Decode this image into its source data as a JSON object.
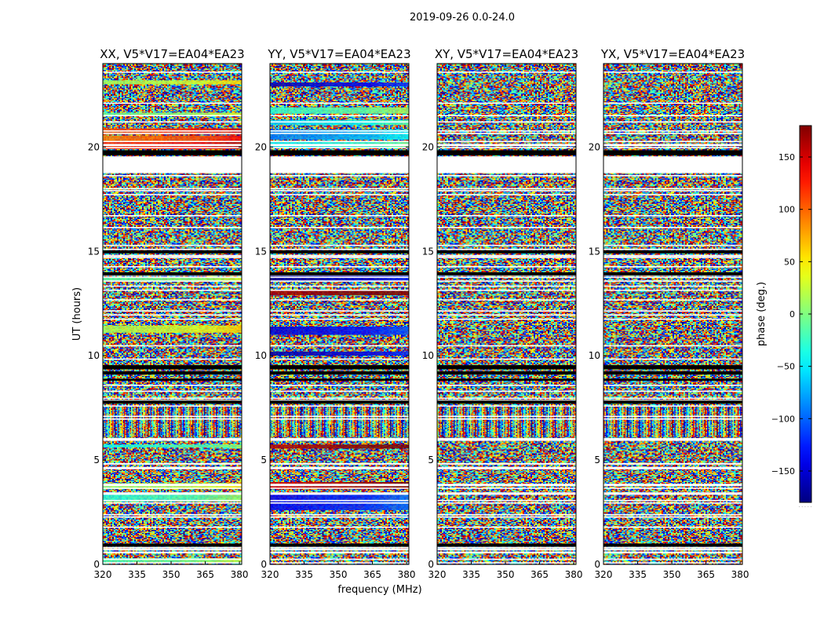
{
  "figure": {
    "suptitle": "2019-09-26 0.0-24.0"
  },
  "chart_data": {
    "type": "heatmap",
    "title": "2019-09-26 0.0-24.0",
    "xlabel": "frequency (MHz)",
    "ylabel": "UT (hours)",
    "xlim": [
      320,
      381
    ],
    "ylim": [
      0,
      24
    ],
    "xticks": [
      "320",
      "335",
      "350",
      "365",
      "380"
    ],
    "xtick_values": [
      320,
      335,
      350,
      365,
      380
    ],
    "yticks": [
      "0",
      "5",
      "10",
      "15",
      "20"
    ],
    "ytick_values": [
      0,
      5,
      10,
      15,
      20
    ],
    "panels": [
      {
        "title": "XX, V5*V17=EA04*EA23",
        "polarization": "XX"
      },
      {
        "title": "YY, V5*V17=EA04*EA23",
        "polarization": "YY"
      },
      {
        "title": "XY, V5*V17=EA04*EA23",
        "polarization": "XY"
      },
      {
        "title": "YX, V5*V17=EA04*EA23",
        "polarization": "YX"
      }
    ],
    "colorbar": {
      "label": "phase (deg.)",
      "vmin": -180,
      "vmax": 180,
      "colormap": "jet",
      "ticks": [
        "−150",
        "−100",
        "−50",
        "0",
        "50",
        "100",
        "150"
      ],
      "tick_values": [
        -150,
        -100,
        -50,
        0,
        50,
        100,
        150
      ],
      "footnote": "· · · · ·"
    },
    "flagged_bands_ut": [
      [
        19.55,
        18.75
      ],
      [
        19.85,
        19.6
      ],
      [
        15.05,
        14.9
      ],
      [
        14.0,
        13.85
      ],
      [
        9.55,
        9.35
      ],
      [
        9.25,
        9.1
      ],
      [
        8.9,
        8.8
      ],
      [
        7.85,
        7.7
      ],
      [
        1.0,
        0.85
      ]
    ],
    "coherent_bands_ut": {
      "XX": [
        {
          "from": 19.9,
          "to": 20.25,
          "phase": 120
        },
        {
          "from": 20.25,
          "to": 20.55,
          "phase": 90
        },
        {
          "from": 20.6,
          "to": 20.9,
          "phase": 105
        },
        {
          "from": 21.5,
          "to": 21.65,
          "phase": -10
        },
        {
          "from": 23.0,
          "to": 23.2,
          "phase": 10
        },
        {
          "from": 13.55,
          "to": 13.75,
          "phase": -15
        },
        {
          "from": 11.1,
          "to": 11.45,
          "phase": 15
        },
        {
          "from": 5.6,
          "to": 5.75,
          "phase": -40
        },
        {
          "from": 3.6,
          "to": 3.9,
          "phase": 5
        },
        {
          "from": 3.0,
          "to": 3.45,
          "phase": -35
        },
        {
          "from": 0.1,
          "to": 0.3,
          "phase": -20
        }
      ],
      "YY": [
        {
          "from": 19.95,
          "to": 20.3,
          "phase": -50
        },
        {
          "from": 20.35,
          "to": 20.85,
          "phase": -90
        },
        {
          "from": 21.05,
          "to": 21.3,
          "phase": -60
        },
        {
          "from": 21.6,
          "to": 21.9,
          "phase": -30
        },
        {
          "from": 22.9,
          "to": 23.1,
          "phase": -160
        },
        {
          "from": 13.6,
          "to": 13.9,
          "phase": -170
        },
        {
          "from": 12.9,
          "to": 13.15,
          "phase": 165
        },
        {
          "from": 11.0,
          "to": 11.4,
          "phase": -150
        },
        {
          "from": 10.0,
          "to": 10.2,
          "phase": -165
        },
        {
          "from": 5.55,
          "to": 5.75,
          "phase": 160
        },
        {
          "from": 3.6,
          "to": 3.95,
          "phase": 150
        },
        {
          "from": 2.6,
          "to": 3.4,
          "phase": -140
        }
      ],
      "XY": [],
      "YX": []
    },
    "fringe_band_ut": [
      6.1,
      7.6
    ]
  }
}
